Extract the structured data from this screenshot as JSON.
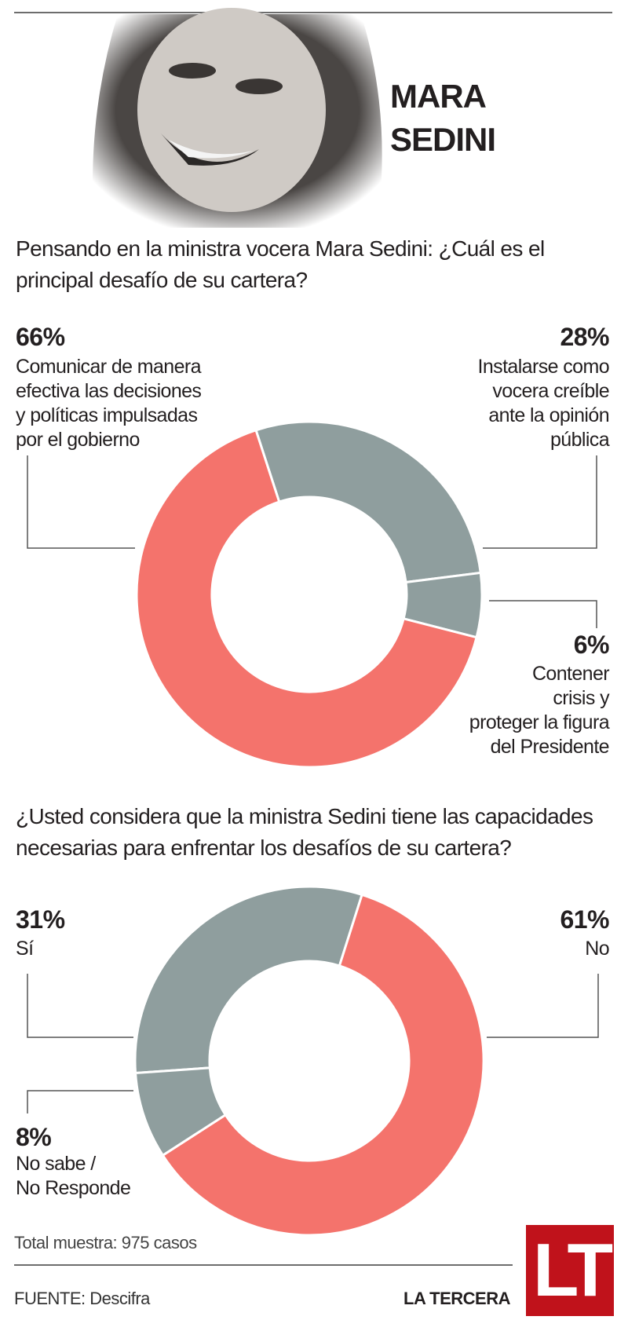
{
  "header": {
    "name_line1": "MARA",
    "name_line2": "SEDINI"
  },
  "colors": {
    "red": "#f4736c",
    "gray": "#8f9e9e",
    "text": "#231f20",
    "logo": "#c0121b"
  },
  "chart_data": [
    {
      "type": "pie",
      "variant": "donut",
      "title": "Pensando en la ministra vocera Mara Sedini: ¿Cuál es el principal desafío de su cartera?",
      "slices": [
        {
          "pct_label": "28%",
          "value": 28,
          "label": [
            "Instalarse como",
            "vocera creíble",
            "ante la opinión",
            "pública"
          ],
          "color": "#8f9e9e"
        },
        {
          "pct_label": "6%",
          "value": 6,
          "label": [
            "Contener",
            "crisis y",
            "proteger la figura",
            "del Presidente"
          ],
          "color": "#8f9e9e"
        },
        {
          "pct_label": "66%",
          "value": 66,
          "label": [
            "Comunicar de manera",
            "efectiva las decisiones",
            "y políticas impulsadas",
            "por el gobierno"
          ],
          "color": "#f4736c"
        }
      ]
    },
    {
      "type": "pie",
      "variant": "donut",
      "title": "¿Usted considera que la ministra Sedini tiene las capacidades necesarias para enfrentar los desafíos de su cartera?",
      "slices": [
        {
          "pct_label": "31%",
          "value": 31,
          "label": [
            "Sí"
          ],
          "color": "#8f9e9e"
        },
        {
          "pct_label": "61%",
          "value": 61,
          "label": [
            "No"
          ],
          "color": "#f4736c"
        },
        {
          "pct_label": "8%",
          "value": 8,
          "label": [
            "No sabe /",
            "No Responde"
          ],
          "color": "#8f9e9e"
        }
      ]
    }
  ],
  "footer": {
    "sample": "Total muestra: 975 casos",
    "source": "FUENTE: Descifra",
    "brand": "LA TERCERA",
    "logo_text": "LT"
  }
}
